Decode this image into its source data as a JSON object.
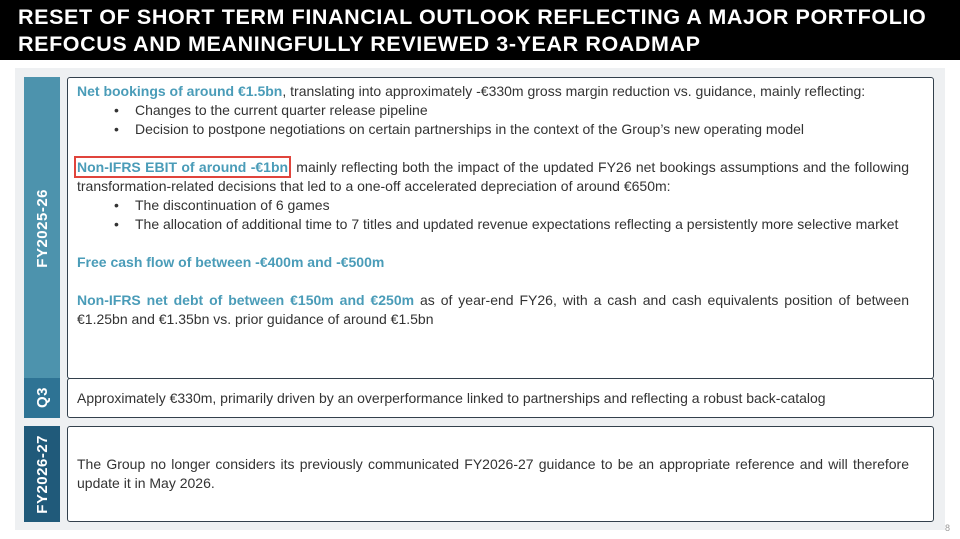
{
  "header": {
    "title": "RESET OF SHORT TERM FINANCIAL OUTLOOK REFLECTING A MAJOR PORTFOLIO REFOCUS AND MEANINGFULLY REVIEWED 3-YEAR ROADMAP"
  },
  "sections": [
    {
      "label": "FY2025-26",
      "items": [
        {
          "lead": "Net bookings of around €1.5bn",
          "text": ", translating into approximately -€330m gross margin reduction vs. guidance, mainly reflecting:",
          "bullets": [
            "Changes to the current quarter release pipeline",
            "Decision to postpone negotiations on certain partnerships in the context of the Group’s new operating model"
          ]
        },
        {
          "lead": "Non-IFRS EBIT of around -€1bn",
          "text": ", mainly reflecting both the impact of the updated FY26 net bookings assumptions and the following transformation-related decisions that led to a one-off accelerated depreciation of around €650m:",
          "bullets": [
            "The discontinuation of 6 games",
            "The allocation of additional time to 7 titles and updated revenue expectations reflecting a persistently more selective market"
          ]
        },
        {
          "lead": "Free cash flow of between -€400m and -€500m"
        },
        {
          "lead": "Non-IFRS net debt of between €150m and €250m",
          "text": " as of year-end FY26, with a cash and cash equivalents position of between €1.25bn and €1.35bn vs. prior guidance of around €1.5bn"
        }
      ]
    },
    {
      "label": "Q3",
      "items": [
        {
          "text": "Approximately €330m, primarily driven by an overperformance linked to partnerships and reflecting a robust back-catalog"
        }
      ]
    },
    {
      "label": "FY2026-27",
      "items": [
        {
          "text": "The Group no longer considers its previously communicated FY2026-27 guidance to be an appropriate reference and will therefore update it in May 2026."
        }
      ]
    }
  ],
  "page_number": "8"
}
